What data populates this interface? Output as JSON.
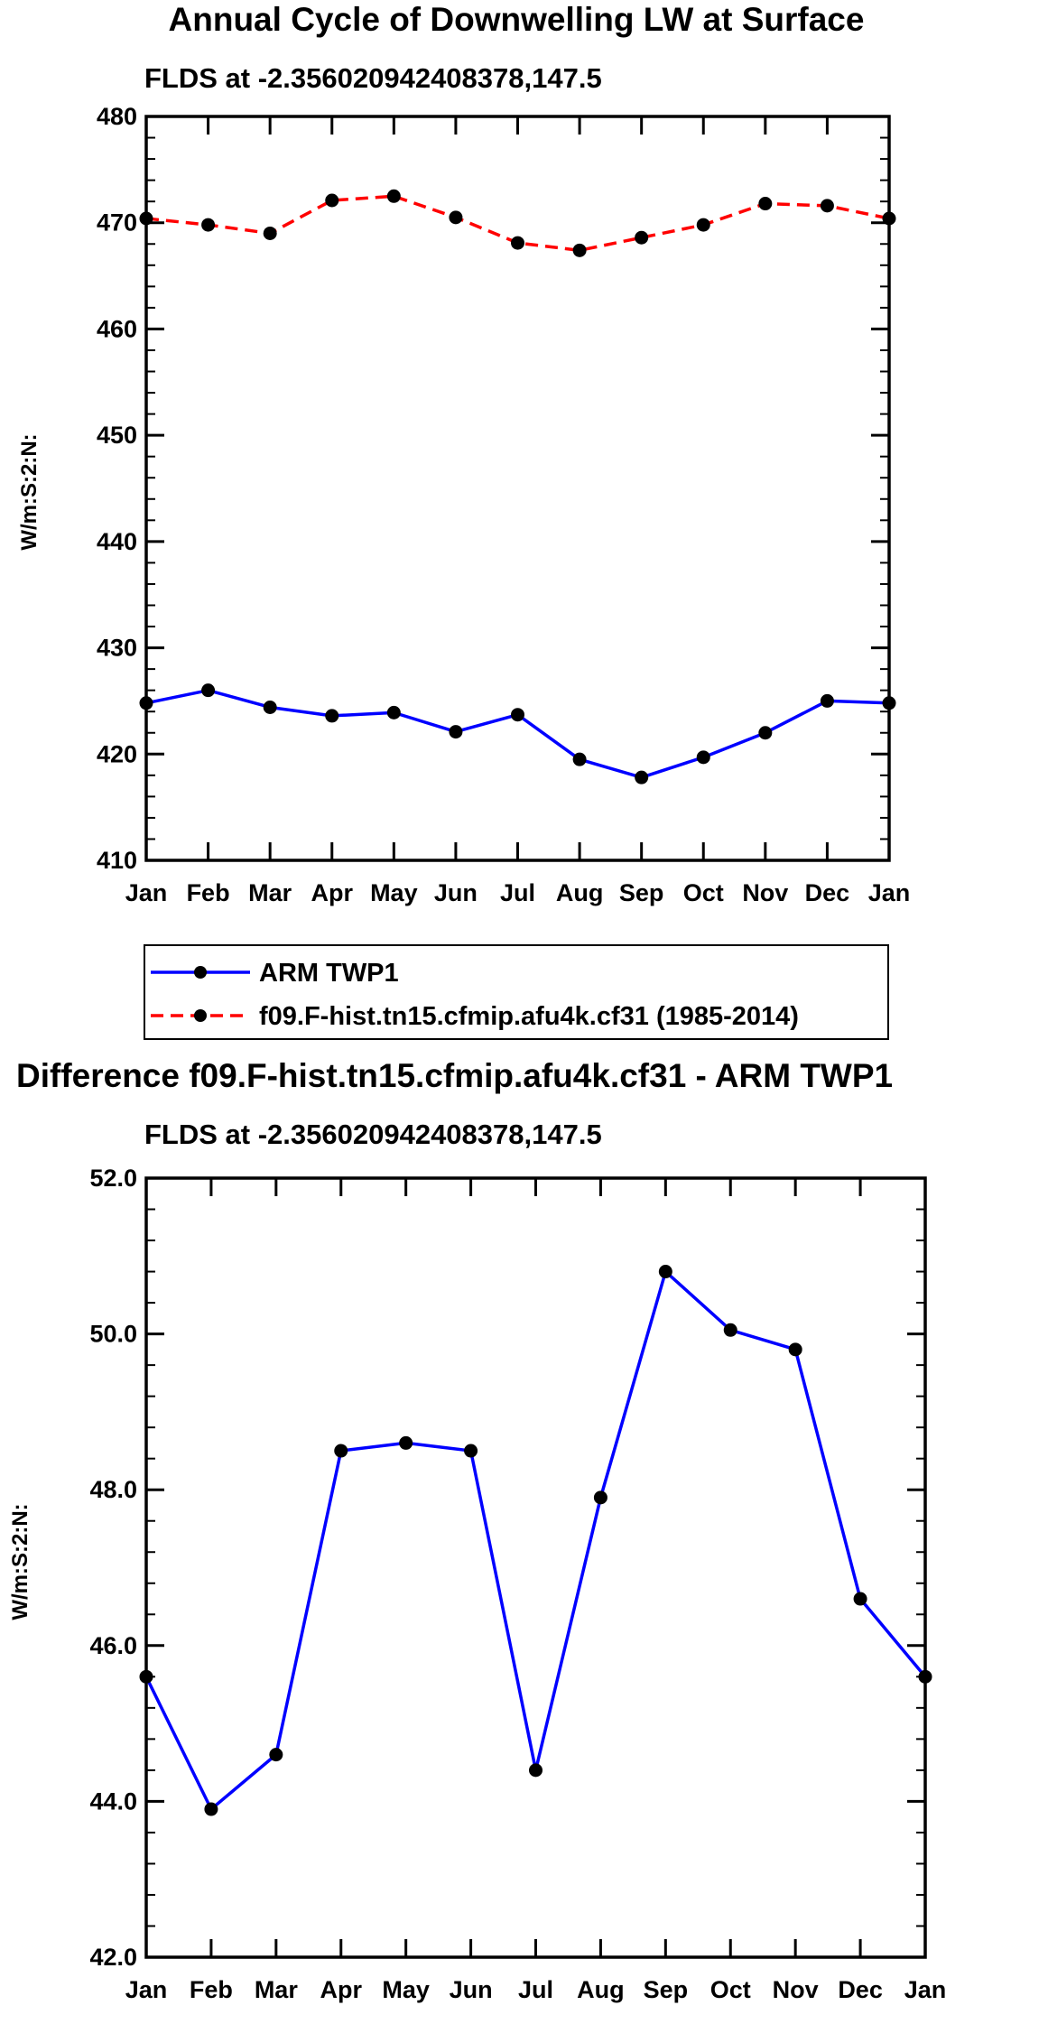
{
  "chart_data": [
    {
      "type": "line",
      "title": "Annual Cycle of Downwelling LW at Surface",
      "subtitle": "FLDS at -2.356020942408378,147.5",
      "ylabel": "W/m:S:2:N:",
      "categories": [
        "Jan",
        "Feb",
        "Mar",
        "Apr",
        "May",
        "Jun",
        "Jul",
        "Aug",
        "Sep",
        "Oct",
        "Nov",
        "Dec",
        "Jan"
      ],
      "ylim": [
        410,
        480
      ],
      "yticks": [
        "410",
        "420",
        "430",
        "440",
        "450",
        "460",
        "470",
        "480"
      ],
      "ytick_values": [
        410,
        420,
        430,
        440,
        450,
        460,
        470,
        480
      ],
      "series": [
        {
          "name": "ARM TWP1",
          "color": "#0000ff",
          "dash": false,
          "values": [
            424.8,
            426.0,
            424.4,
            423.6,
            423.9,
            422.1,
            423.7,
            419.5,
            417.8,
            419.7,
            422.0,
            425.0,
            424.8
          ]
        },
        {
          "name": "f09.F-hist.tn15.cfmip.afu4k.cf31 (1985-2014)",
          "color": "#ff0000",
          "dash": true,
          "values": [
            470.4,
            469.8,
            469.0,
            472.1,
            472.5,
            470.5,
            468.1,
            467.4,
            468.6,
            469.8,
            471.8,
            471.6,
            470.4
          ]
        }
      ]
    },
    {
      "type": "line",
      "title": "Difference f09.F-hist.tn15.cfmip.afu4k.cf31 - ARM TWP1",
      "subtitle": "FLDS at -2.356020942408378,147.5",
      "ylabel": "W/m:S:2:N:",
      "categories": [
        "Jan",
        "Feb",
        "Mar",
        "Apr",
        "May",
        "Jun",
        "Jul",
        "Aug",
        "Sep",
        "Oct",
        "Nov",
        "Dec",
        "Jan"
      ],
      "ylim": [
        42,
        52
      ],
      "yticks": [
        "42.0",
        "44.0",
        "46.0",
        "48.0",
        "50.0",
        "52.0"
      ],
      "ytick_values": [
        42,
        44,
        46,
        48,
        50,
        52
      ],
      "series": [
        {
          "name": "Difference",
          "color": "#0000ff",
          "dash": false,
          "values": [
            45.6,
            43.9,
            44.6,
            48.5,
            48.6,
            48.5,
            44.4,
            47.9,
            50.8,
            50.05,
            49.8,
            46.6,
            45.6
          ]
        }
      ]
    }
  ]
}
